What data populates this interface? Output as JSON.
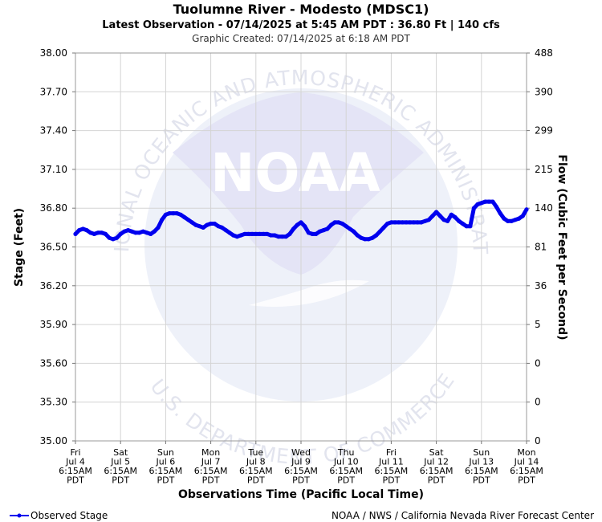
{
  "chart_data": {
    "type": "line",
    "title": "Tuolumne River - Modesto (MDSC1)",
    "subtitle": "Latest Observation - 07/14/2025 at 5:45 AM PDT : 36.80 Ft | 140 cfs",
    "created": "Graphic Created: 07/14/2025 at 6:18 AM PDT",
    "xlabel": "Observations Time (Pacific Local Time)",
    "ylabel": "Stage (Feet)",
    "y2label": "Flow (Cubic Feet per Second)",
    "ylim": [
      35.0,
      38.0
    ],
    "xlim": [
      0,
      240
    ],
    "grid": true,
    "legend_position": "bottom-left",
    "y_ticks": [
      "38.00",
      "37.70",
      "37.40",
      "37.10",
      "36.80",
      "36.50",
      "36.20",
      "35.90",
      "35.60",
      "35.30",
      "35.00"
    ],
    "y2_ticks": [
      "488",
      "390",
      "299",
      "215",
      "140",
      "81",
      "36",
      "5",
      "0",
      "0",
      "0"
    ],
    "x_ticks": [
      [
        "Fri",
        "Jul 4",
        "6:15AM",
        "PDT"
      ],
      [
        "Sat",
        "Jul 5",
        "6:15AM",
        "PDT"
      ],
      [
        "Sun",
        "Jul 6",
        "6:15AM",
        "PDT"
      ],
      [
        "Mon",
        "Jul 7",
        "6:15AM",
        "PDT"
      ],
      [
        "Tue",
        "Jul 8",
        "6:15AM",
        "PDT"
      ],
      [
        "Wed",
        "Jul 9",
        "6:15AM",
        "PDT"
      ],
      [
        "Thu",
        "Jul 10",
        "6:15AM",
        "PDT"
      ],
      [
        "Fri",
        "Jul 11",
        "6:15AM",
        "PDT"
      ],
      [
        "Sat",
        "Jul 12",
        "6:15AM",
        "PDT"
      ],
      [
        "Sun",
        "Jul 13",
        "6:15AM",
        "PDT"
      ],
      [
        "Mon",
        "Jul 14",
        "6:15AM",
        "PDT"
      ]
    ],
    "series": [
      {
        "name": "Observed Stage",
        "color": "#0000ee",
        "hours": [
          0,
          2,
          4,
          6,
          8,
          10,
          12,
          14,
          16,
          18,
          20,
          22,
          24,
          26,
          28,
          30,
          32,
          34,
          36,
          38,
          40,
          42,
          44,
          46,
          48,
          50,
          52,
          54,
          56,
          58,
          60,
          62,
          64,
          66,
          68,
          70,
          72,
          74,
          76,
          78,
          80,
          82,
          84,
          86,
          88,
          90,
          92,
          94,
          96,
          98,
          100,
          102,
          104,
          106,
          108,
          110,
          112,
          114,
          116,
          118,
          120,
          122,
          124,
          126,
          128,
          130,
          132,
          134,
          136,
          138,
          140,
          142,
          144,
          146,
          148,
          150,
          152,
          154,
          156,
          158,
          160,
          162,
          164,
          166,
          168,
          170,
          172,
          174,
          176,
          178,
          180,
          182,
          184,
          186,
          188,
          190,
          192,
          194,
          196,
          198,
          200,
          202,
          204,
          206,
          208,
          210,
          212,
          214,
          216,
          218,
          220,
          222,
          224,
          226,
          228,
          230,
          232,
          234,
          236,
          238,
          240
        ],
        "values": [
          36.6,
          36.63,
          36.64,
          36.63,
          36.61,
          36.6,
          36.61,
          36.61,
          36.6,
          36.57,
          36.56,
          36.57,
          36.6,
          36.62,
          36.63,
          36.62,
          36.61,
          36.61,
          36.62,
          36.61,
          36.6,
          36.62,
          36.65,
          36.71,
          36.75,
          36.76,
          36.76,
          36.76,
          36.75,
          36.73,
          36.71,
          36.69,
          36.67,
          36.66,
          36.65,
          36.67,
          36.68,
          36.68,
          36.66,
          36.65,
          36.63,
          36.61,
          36.59,
          36.58,
          36.59,
          36.6,
          36.6,
          36.6,
          36.6,
          36.6,
          36.6,
          36.6,
          36.59,
          36.59,
          36.58,
          36.58,
          36.58,
          36.6,
          36.64,
          36.67,
          36.69,
          36.66,
          36.61,
          36.6,
          36.6,
          36.62,
          36.63,
          36.64,
          36.67,
          36.69,
          36.69,
          36.68,
          36.66,
          36.64,
          36.62,
          36.59,
          36.57,
          36.56,
          36.56,
          36.57,
          36.59,
          36.62,
          36.65,
          36.68,
          36.69,
          36.69,
          36.69,
          36.69,
          36.69,
          36.69,
          36.69,
          36.69,
          36.69,
          36.7,
          36.71,
          36.74,
          36.77,
          36.74,
          36.71,
          36.7,
          36.75,
          36.73,
          36.7,
          36.68,
          36.66,
          36.66,
          36.8,
          36.83,
          36.84,
          36.85,
          36.85,
          36.85,
          36.81,
          36.76,
          36.72,
          36.7,
          36.7,
          36.71,
          36.72,
          36.74,
          36.79
        ]
      }
    ]
  },
  "watermark": {
    "logo_text": "NOAA",
    "ring_top": "NATIONAL OCEANIC AND ATMOSPHERIC ADMINISTRATION",
    "ring_bottom": "U.S. DEPARTMENT OF COMMERCE"
  },
  "legend": {
    "label": "Observed Stage"
  },
  "footer": {
    "credit": "NOAA / NWS / California Nevada River Forecast Center"
  }
}
